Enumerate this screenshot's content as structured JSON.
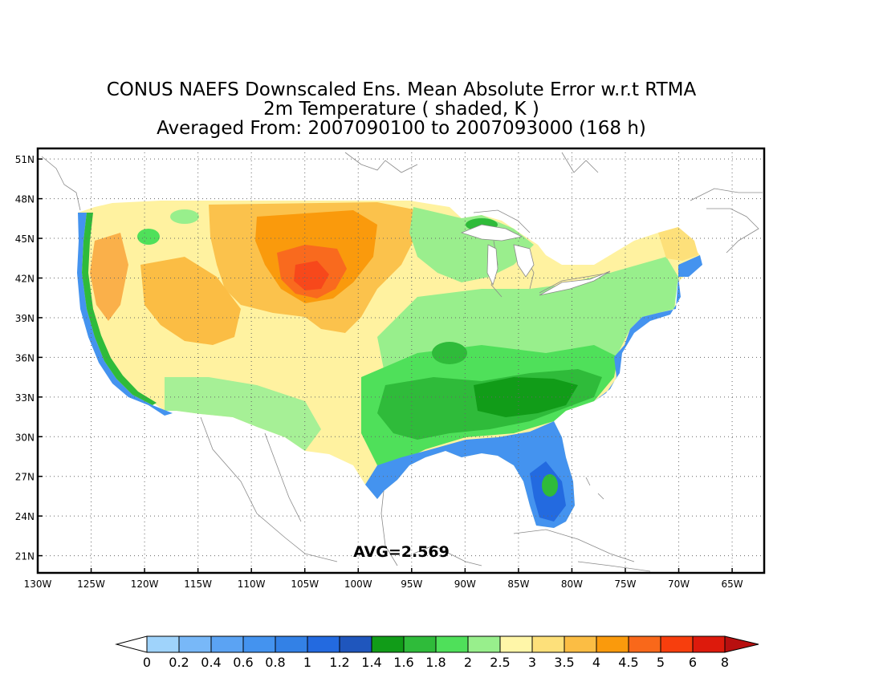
{
  "title": {
    "line1": "CONUS NAEFS Downscaled Ens. Mean Absolute Error w.r.t RTMA",
    "line2": "2m Temperature ( shaded, K )",
    "line3": "Averaged From: 2007090100 to 2007093000 (168 h)"
  },
  "map": {
    "lon_range": [
      -130,
      -62
    ],
    "lat_range": [
      19.7,
      51.8
    ],
    "lat_ticks": [
      "51N",
      "48N",
      "45N",
      "42N",
      "39N",
      "36N",
      "33N",
      "30N",
      "27N",
      "24N",
      "21N"
    ],
    "lon_ticks": [
      "130W",
      "125W",
      "120W",
      "115W",
      "110W",
      "105W",
      "100W",
      "95W",
      "90W",
      "85W",
      "80W",
      "75W",
      "70W",
      "65W"
    ],
    "grid": "dotted",
    "avg_label": "AVG=2.569"
  },
  "colorbar": {
    "labels": [
      "0",
      "0.2",
      "0.4",
      "0.6",
      "0.8",
      "1",
      "1.2",
      "1.4",
      "1.6",
      "1.8",
      "2",
      "2.5",
      "3",
      "3.5",
      "4",
      "4.5",
      "5",
      "6",
      "8"
    ],
    "colors": [
      "#ffffff",
      "#9fd3fb",
      "#78b8f8",
      "#5ba3f3",
      "#4493ef",
      "#3381e6",
      "#236ae0",
      "#1f56bd",
      "#119c18",
      "#2fbb3a",
      "#4fe05a",
      "#98ef8c",
      "#fff6a8",
      "#fde07a",
      "#fbbd44",
      "#fa9a0c",
      "#f9681a",
      "#f73e0d",
      "#dd1a0c",
      "#b80f0f"
    ]
  }
}
